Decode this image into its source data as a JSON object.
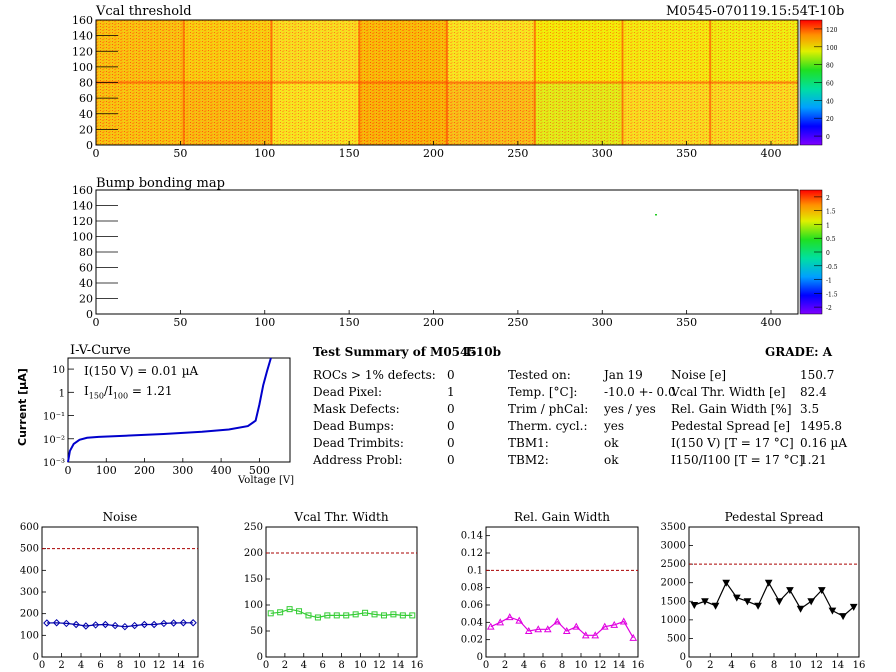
{
  "colors": {
    "heat_cold": "#7f00ff",
    "heat_hot": "#ff0000",
    "iv_line": "#0000cc",
    "noise": "#0000aa",
    "vcal": "#33cc33",
    "gain": "#e000e0",
    "ped": "#000000",
    "limit": "#aa0000"
  },
  "heatmap1": {
    "title": "Vcal threshold",
    "id_text": "M0545-070119.15:54T-10b",
    "xticks": [
      "0",
      "50",
      "100",
      "150",
      "200",
      "250",
      "300",
      "350",
      "400"
    ],
    "yticks": [
      "0",
      "20",
      "40",
      "60",
      "80",
      "100",
      "120",
      "140",
      "160"
    ],
    "scale": [
      "0",
      "20",
      "40",
      "60",
      "80",
      "100",
      "120"
    ]
  },
  "heatmap2": {
    "title": "Bump bonding map",
    "xticks": [
      "0",
      "50",
      "100",
      "150",
      "200",
      "250",
      "300",
      "350",
      "400"
    ],
    "yticks": [
      "0",
      "20",
      "40",
      "60",
      "80",
      "100",
      "120",
      "140",
      "160"
    ],
    "scale": [
      "-2",
      "-1.5",
      "-1",
      "-0.5",
      "0",
      "0.5",
      "1",
      "1.5",
      "2"
    ]
  },
  "iv": {
    "title": "I-V-Curve",
    "ylabel": "Current [µA]",
    "xlabel": "Voltage [V]",
    "note1": "I(150 V) = 0.01 µA",
    "note2_pre": "I",
    "note2_sub1": "150",
    "note2_mid": "/I",
    "note2_sub2": "100",
    "note2_post": " =  1.21",
    "xticks": [
      "0",
      "100",
      "200",
      "300",
      "400",
      "500"
    ],
    "yticks": [
      "10⁻³",
      "10⁻²",
      "10⁻¹",
      "1",
      "10"
    ]
  },
  "summary": {
    "title": "Test Summary of M0545",
    "temp_label": "T-10b",
    "grade_label": "GRADE:  A",
    "left": [
      {
        "k": "ROCs > 1% defects:",
        "v": "0"
      },
      {
        "k": "Dead Pixel:",
        "v": "1"
      },
      {
        "k": "Mask Defects:",
        "v": "0"
      },
      {
        "k": "Dead Bumps:",
        "v": "0"
      },
      {
        "k": "Dead Trimbits:",
        "v": "0"
      },
      {
        "k": "Address Probl:",
        "v": "0"
      }
    ],
    "mid": [
      {
        "k": "Tested on:",
        "v": "Jan 19"
      },
      {
        "k": "Temp. [°C]:",
        "v": "-10.0 +- 0.0"
      },
      {
        "k": "Trim / phCal:",
        "v": "yes / yes"
      },
      {
        "k": "Therm. cycl.:",
        "v": "yes"
      },
      {
        "k": "TBM1:",
        "v": "ok"
      },
      {
        "k": "TBM2:",
        "v": "ok"
      }
    ],
    "right": [
      {
        "k": "Noise [e]",
        "v": "150.7"
      },
      {
        "k": "Vcal Thr. Width [e]",
        "v": "82.4"
      },
      {
        "k": "Rel. Gain Width [%]",
        "v": "3.5"
      },
      {
        "k": "Pedestal Spread [e]",
        "v": "1495.8"
      },
      {
        "k": "I(150 V) [T = 17 °C]",
        "v": "0.16 µA"
      },
      {
        "k": "I150/I100  [T = 17 °C]",
        "v": "1.21"
      }
    ]
  },
  "chart_data": [
    {
      "type": "heatmap",
      "title": "Vcal threshold",
      "xlim": [
        0,
        416
      ],
      "ylim": [
        0,
        160
      ],
      "zlim": [
        0,
        130
      ]
    },
    {
      "type": "heatmap",
      "title": "Bump bonding map",
      "xlim": [
        0,
        416
      ],
      "ylim": [
        0,
        160
      ],
      "zlim": [
        -2,
        2
      ]
    },
    {
      "type": "line",
      "title": "I-V-Curve",
      "xlabel": "Voltage [V]",
      "ylabel": "Current [µA]",
      "yscale": "log",
      "xlim": [
        0,
        580
      ],
      "ylim": [
        0.001,
        30
      ],
      "x": [
        0,
        5,
        15,
        30,
        50,
        80,
        150,
        250,
        350,
        420,
        470,
        490,
        500,
        510,
        520,
        530
      ],
      "y": [
        0.001,
        0.003,
        0.006,
        0.009,
        0.011,
        0.012,
        0.0135,
        0.016,
        0.02,
        0.025,
        0.035,
        0.06,
        0.3,
        2,
        8,
        30
      ]
    },
    {
      "type": "line",
      "title": "Noise",
      "xlim": [
        0,
        16
      ],
      "ylim": [
        0,
        600
      ],
      "xticks": [
        "0",
        "2",
        "4",
        "6",
        "8",
        "10",
        "12",
        "14",
        "16"
      ],
      "yticks": [
        "0",
        "100",
        "200",
        "300",
        "400",
        "500",
        "600"
      ],
      "limit": 500,
      "x": [
        0.5,
        1.5,
        2.5,
        3.5,
        4.5,
        5.5,
        6.5,
        7.5,
        8.5,
        9.5,
        10.5,
        11.5,
        12.5,
        13.5,
        14.5,
        15.5
      ],
      "values": [
        157,
        158,
        155,
        150,
        143,
        148,
        150,
        145,
        140,
        145,
        150,
        150,
        155,
        157,
        158,
        158
      ]
    },
    {
      "type": "line",
      "title": "Vcal Thr. Width",
      "xlim": [
        0,
        16
      ],
      "ylim": [
        0,
        250
      ],
      "xticks": [
        "0",
        "2",
        "4",
        "6",
        "8",
        "10",
        "12",
        "14",
        "16"
      ],
      "yticks": [
        "0",
        "50",
        "100",
        "150",
        "200",
        "250"
      ],
      "limit": 200,
      "x": [
        0.5,
        1.5,
        2.5,
        3.5,
        4.5,
        5.5,
        6.5,
        7.5,
        8.5,
        9.5,
        10.5,
        11.5,
        12.5,
        13.5,
        14.5,
        15.5
      ],
      "values": [
        84,
        86,
        92,
        88,
        80,
        76,
        80,
        80,
        80,
        82,
        85,
        82,
        80,
        82,
        80,
        80
      ]
    },
    {
      "type": "line",
      "title": "Rel. Gain Width",
      "xlim": [
        0,
        16
      ],
      "ylim": [
        0,
        0.15
      ],
      "xticks": [
        "0",
        "2",
        "4",
        "6",
        "8",
        "10",
        "12",
        "14",
        "16"
      ],
      "yticks": [
        "0",
        "0.02",
        "0.04",
        "0.06",
        "0.08",
        "0.1",
        "0.12",
        "0.14"
      ],
      "limit": 0.1,
      "x": [
        0.5,
        1.5,
        2.5,
        3.5,
        4.5,
        5.5,
        6.5,
        7.5,
        8.5,
        9.5,
        10.5,
        11.5,
        12.5,
        13.5,
        14.5,
        15.5
      ],
      "values": [
        0.035,
        0.04,
        0.046,
        0.042,
        0.03,
        0.032,
        0.032,
        0.041,
        0.03,
        0.035,
        0.025,
        0.025,
        0.035,
        0.037,
        0.041,
        0.022
      ]
    },
    {
      "type": "line",
      "title": "Pedestal Spread",
      "xlim": [
        0,
        16
      ],
      "ylim": [
        0,
        3500
      ],
      "xticks": [
        "0",
        "2",
        "4",
        "6",
        "8",
        "10",
        "12",
        "14",
        "16"
      ],
      "yticks": [
        "0",
        "500",
        "1000",
        "1500",
        "2000",
        "2500",
        "3000",
        "3500"
      ],
      "limit": 2500,
      "x": [
        0.5,
        1.5,
        2.5,
        3.5,
        4.5,
        5.5,
        6.5,
        7.5,
        8.5,
        9.5,
        10.5,
        11.5,
        12.5,
        13.5,
        14.5,
        15.5
      ],
      "values": [
        1400,
        1500,
        1380,
        2000,
        1600,
        1500,
        1380,
        2000,
        1500,
        1800,
        1300,
        1500,
        1800,
        1250,
        1100,
        1350
      ]
    }
  ]
}
